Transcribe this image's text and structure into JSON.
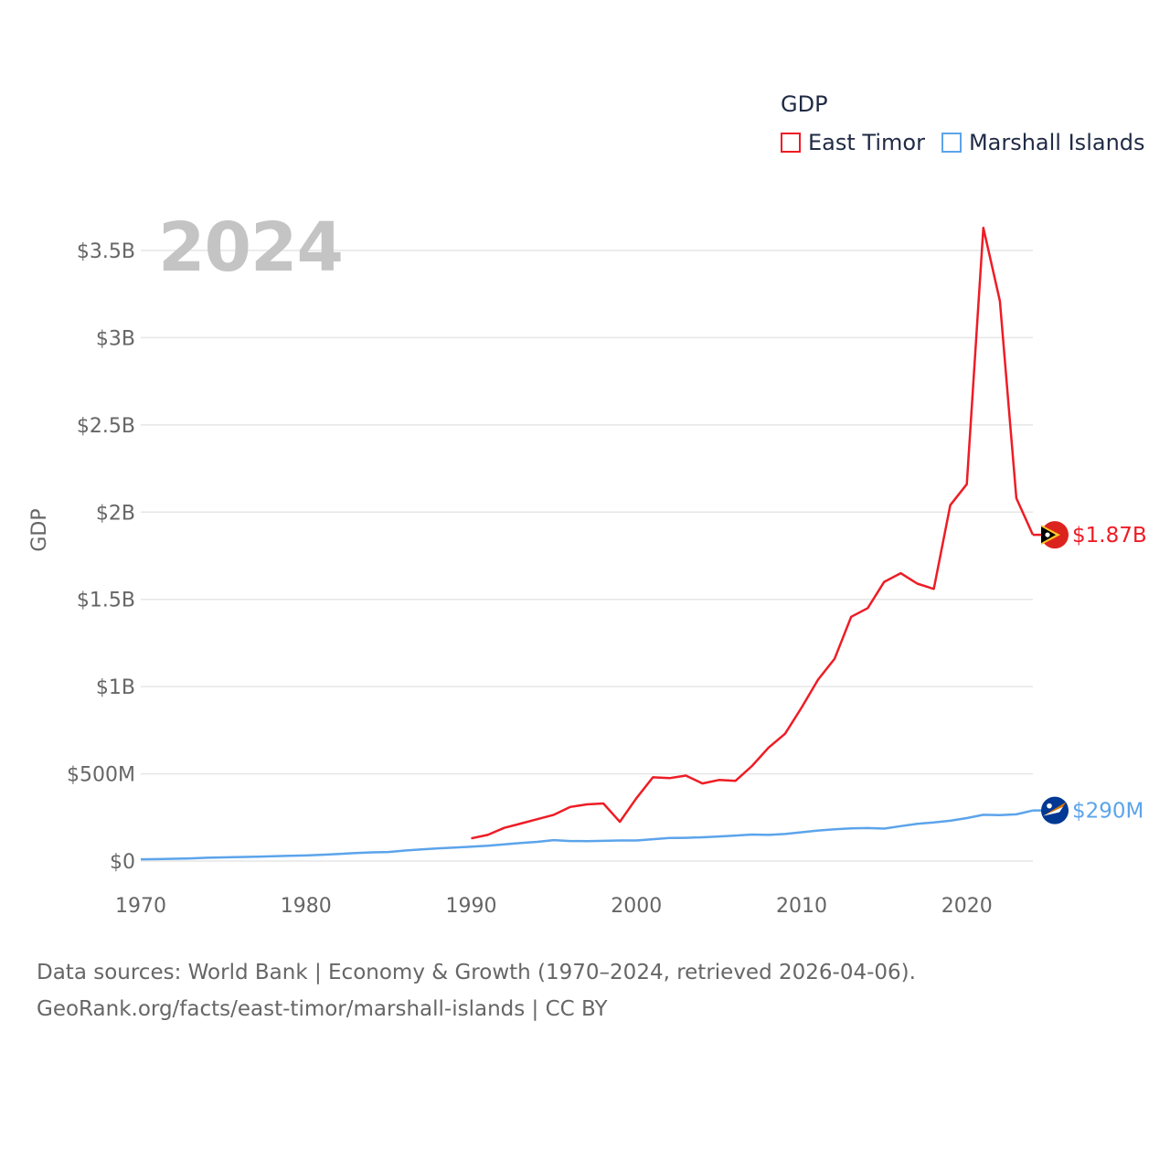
{
  "chart_data": {
    "type": "line",
    "title": "GDP",
    "xlabel": "",
    "ylabel": "GDP",
    "year_label": "2024",
    "xlim": [
      1970,
      2024
    ],
    "ylim": [
      0,
      3500000000
    ],
    "x_ticks": [
      "1970",
      "1980",
      "1990",
      "2000",
      "2010",
      "2020"
    ],
    "y_ticks": [
      {
        "value": 0,
        "label": "$0"
      },
      {
        "value": 500000000,
        "label": "$500M"
      },
      {
        "value": 1000000000,
        "label": "$1B"
      },
      {
        "value": 1500000000,
        "label": "$1.5B"
      },
      {
        "value": 2000000000,
        "label": "$2B"
      },
      {
        "value": 2500000000,
        "label": "$2.5B"
      },
      {
        "value": 3000000000,
        "label": "$3B"
      },
      {
        "value": 3500000000,
        "label": "$3.5B"
      }
    ],
    "series": [
      {
        "name": "East Timor",
        "color": "#ee1c25",
        "end_label": "$1.87B",
        "flag_icon": "east-timor-flag-icon",
        "x": [
          1990,
          1991,
          1992,
          1993,
          1994,
          1995,
          1996,
          1997,
          1998,
          1999,
          2000,
          2001,
          2002,
          2003,
          2004,
          2005,
          2006,
          2007,
          2008,
          2009,
          2010,
          2011,
          2012,
          2013,
          2014,
          2015,
          2016,
          2017,
          2018,
          2019,
          2020,
          2021,
          2022,
          2023,
          2024
        ],
        "values": [
          130000000,
          150000000,
          190000000,
          215000000,
          240000000,
          265000000,
          310000000,
          325000000,
          330000000,
          225000000,
          360000000,
          480000000,
          475000000,
          490000000,
          445000000,
          465000000,
          460000000,
          545000000,
          650000000,
          730000000,
          880000000,
          1040000000,
          1160000000,
          1400000000,
          1450000000,
          1600000000,
          1650000000,
          1590000000,
          1560000000,
          2040000000,
          2160000000,
          3630000000,
          3210000000,
          2080000000,
          1870000000
        ]
      },
      {
        "name": "Marshall Islands",
        "color": "#5ca4eb",
        "end_label": "$290M",
        "flag_icon": "marshall-islands-flag-icon",
        "x": [
          1970,
          1971,
          1972,
          1973,
          1974,
          1975,
          1976,
          1977,
          1978,
          1979,
          1980,
          1981,
          1982,
          1983,
          1984,
          1985,
          1986,
          1987,
          1988,
          1989,
          1990,
          1991,
          1992,
          1993,
          1994,
          1995,
          1996,
          1997,
          1998,
          1999,
          2000,
          2001,
          2002,
          2003,
          2004,
          2005,
          2006,
          2007,
          2008,
          2009,
          2010,
          2011,
          2012,
          2013,
          2014,
          2015,
          2016,
          2017,
          2018,
          2019,
          2020,
          2021,
          2022,
          2023,
          2024
        ],
        "values": [
          10000000,
          11000000,
          13000000,
          15000000,
          19000000,
          21000000,
          23000000,
          25000000,
          28000000,
          30000000,
          32000000,
          36000000,
          41000000,
          46000000,
          50000000,
          52000000,
          60000000,
          67000000,
          73000000,
          77000000,
          82000000,
          88000000,
          96000000,
          103000000,
          110000000,
          120000000,
          115000000,
          114000000,
          116000000,
          118000000,
          118000000,
          125000000,
          132000000,
          133000000,
          136000000,
          141000000,
          146000000,
          152000000,
          150000000,
          155000000,
          165000000,
          175000000,
          182000000,
          187000000,
          189000000,
          186000000,
          200000000,
          213000000,
          221000000,
          231000000,
          246000000,
          265000000,
          263000000,
          268000000,
          290000000
        ]
      }
    ],
    "legend_title": "GDP",
    "legend_position": "top-right",
    "grid": true
  },
  "source": {
    "line1": "Data sources: World Bank | Economy & Growth (1970–2024, retrieved 2026-04-06).",
    "line2": "GeoRank.org/facts/east-timor/marshall-islands | CC BY"
  }
}
